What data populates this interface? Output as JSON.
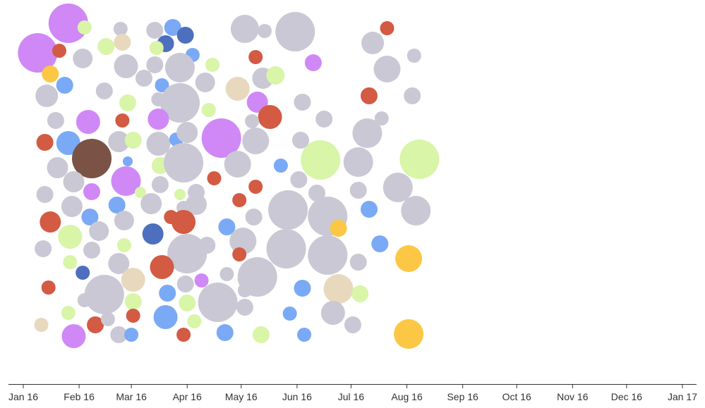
{
  "chart_data": {
    "type": "scatter",
    "x_axis": {
      "tick_labels": [
        "Jan 16",
        "Feb 16",
        "Mar 16",
        "Apr 16",
        "May 16",
        "Jun 16",
        "Jul 16",
        "Aug 16",
        "Sep 16",
        "Oct 16",
        "Nov 16",
        "Dec 16",
        "Jan 17"
      ],
      "tick_dates": [
        "2016-01-01",
        "2016-02-01",
        "2016-03-01",
        "2016-04-01",
        "2016-05-01",
        "2016-06-01",
        "2016-07-01",
        "2016-08-01",
        "2016-09-01",
        "2016-10-01",
        "2016-11-01",
        "2016-12-01",
        "2017-01-01"
      ]
    },
    "y_axis": {
      "visible": false
    },
    "grid": false,
    "legend": "none",
    "colors": {
      "gray": "#c9c8d4",
      "violet": "#cf88f5",
      "red": "#d35a43",
      "blue": "#7aa9f5",
      "navy": "#4e6fbe",
      "lime": "#d8f5a8",
      "gold": "#fbc744",
      "tan": "#e8d8bd",
      "brown": "#7a5246"
    },
    "points": [
      {
        "date": "2016-01-09",
        "y": 75,
        "r": 28,
        "c": "violet"
      },
      {
        "date": "2016-01-26",
        "y": 33,
        "r": 28,
        "c": "violet"
      },
      {
        "date": "2016-02-04",
        "y": 39,
        "r": 10,
        "c": "lime"
      },
      {
        "date": "2016-01-21",
        "y": 72,
        "r": 10,
        "c": "red"
      },
      {
        "date": "2016-01-16",
        "y": 105,
        "r": 12,
        "c": "gold"
      },
      {
        "date": "2016-02-03",
        "y": 83,
        "r": 14,
        "c": "gray"
      },
      {
        "date": "2016-01-24",
        "y": 121,
        "r": 12,
        "c": "blue"
      },
      {
        "date": "2016-01-14",
        "y": 136,
        "r": 16,
        "c": "gray"
      },
      {
        "date": "2016-02-16",
        "y": 66,
        "r": 12,
        "c": "lime"
      },
      {
        "date": "2016-02-24",
        "y": 41,
        "r": 10,
        "c": "gray"
      },
      {
        "date": "2016-02-25",
        "y": 60,
        "r": 12,
        "c": "tan"
      },
      {
        "date": "2016-02-27",
        "y": 94,
        "r": 17,
        "c": "gray"
      },
      {
        "date": "2016-02-15",
        "y": 129,
        "r": 12,
        "c": "gray"
      },
      {
        "date": "2016-03-14",
        "y": 43,
        "r": 12,
        "c": "gray"
      },
      {
        "date": "2016-03-24",
        "y": 39,
        "r": 12,
        "c": "blue"
      },
      {
        "date": "2016-03-20",
        "y": 62,
        "r": 12,
        "c": "navy"
      },
      {
        "date": "2016-03-15",
        "y": 68,
        "r": 10,
        "c": "lime"
      },
      {
        "date": "2016-03-31",
        "y": 50,
        "r": 12,
        "c": "navy"
      },
      {
        "date": "2016-04-04",
        "y": 78,
        "r": 10,
        "c": "blue"
      },
      {
        "date": "2016-03-14",
        "y": 92,
        "r": 12,
        "c": "gray"
      },
      {
        "date": "2016-03-08",
        "y": 111,
        "r": 12,
        "c": "gray"
      },
      {
        "date": "2016-03-28",
        "y": 96,
        "r": 21,
        "c": "gray"
      },
      {
        "date": "2016-04-15",
        "y": 92,
        "r": 10,
        "c": "lime"
      },
      {
        "date": "2016-04-11",
        "y": 117,
        "r": 14,
        "c": "gray"
      },
      {
        "date": "2016-03-18",
        "y": 121,
        "r": 10,
        "c": "blue"
      },
      {
        "date": "2016-02-28",
        "y": 146,
        "r": 12,
        "c": "lime"
      },
      {
        "date": "2016-03-16",
        "y": 141,
        "r": 10,
        "c": "gray"
      },
      {
        "date": "2016-03-28",
        "y": 146,
        "r": 28,
        "c": "gray"
      },
      {
        "date": "2016-01-19",
        "y": 171,
        "r": 12,
        "c": "gray"
      },
      {
        "date": "2016-02-06",
        "y": 173,
        "r": 17,
        "c": "violet"
      },
      {
        "date": "2016-02-25",
        "y": 171,
        "r": 10,
        "c": "red"
      },
      {
        "date": "2016-03-16",
        "y": 169,
        "r": 15,
        "c": "violet"
      },
      {
        "date": "2016-04-13",
        "y": 156,
        "r": 10,
        "c": "lime"
      },
      {
        "date": "2016-05-03",
        "y": 41,
        "r": 20,
        "c": "gray"
      },
      {
        "date": "2016-05-14",
        "y": 44,
        "r": 10,
        "c": "gray"
      },
      {
        "date": "2016-05-31",
        "y": 45,
        "r": 28,
        "c": "gray"
      },
      {
        "date": "2016-05-09",
        "y": 81,
        "r": 10,
        "c": "red"
      },
      {
        "date": "2016-05-13",
        "y": 111,
        "r": 15,
        "c": "gray"
      },
      {
        "date": "2016-04-29",
        "y": 126,
        "r": 17,
        "c": "tan"
      },
      {
        "date": "2016-05-20",
        "y": 107,
        "r": 13,
        "c": "lime"
      },
      {
        "date": "2016-05-10",
        "y": 145,
        "r": 15,
        "c": "violet"
      },
      {
        "date": "2016-06-10",
        "y": 89,
        "r": 12,
        "c": "violet"
      },
      {
        "date": "2016-07-13",
        "y": 61,
        "r": 16,
        "c": "gray"
      },
      {
        "date": "2016-07-21",
        "y": 40,
        "r": 10,
        "c": "red"
      },
      {
        "date": "2016-08-05",
        "y": 79,
        "r": 10,
        "c": "gray"
      },
      {
        "date": "2016-07-21",
        "y": 98,
        "r": 19,
        "c": "gray"
      },
      {
        "date": "2016-08-04",
        "y": 136,
        "r": 12,
        "c": "gray"
      },
      {
        "date": "2016-07-11",
        "y": 136,
        "r": 12,
        "c": "red"
      },
      {
        "date": "2016-06-04",
        "y": 145,
        "r": 12,
        "c": "gray"
      },
      {
        "date": "2016-05-17",
        "y": 166,
        "r": 17,
        "c": "red"
      },
      {
        "date": "2016-05-07",
        "y": 172,
        "r": 10,
        "c": "gray"
      },
      {
        "date": "2016-06-16",
        "y": 169,
        "r": 12,
        "c": "gray"
      },
      {
        "date": "2016-07-18",
        "y": 168,
        "r": 10,
        "c": "gray"
      },
      {
        "date": "2016-07-10",
        "y": 189,
        "r": 21,
        "c": "gray"
      },
      {
        "date": "2016-01-13",
        "y": 202,
        "r": 12,
        "c": "red"
      },
      {
        "date": "2016-01-26",
        "y": 203,
        "r": 17,
        "c": "blue"
      },
      {
        "date": "2016-02-08",
        "y": 225,
        "r": 28,
        "c": "brown"
      },
      {
        "date": "2016-02-23",
        "y": 201,
        "r": 15,
        "c": "gray"
      },
      {
        "date": "2016-03-02",
        "y": 199,
        "r": 12,
        "c": "lime"
      },
      {
        "date": "2016-03-16",
        "y": 204,
        "r": 17,
        "c": "gray"
      },
      {
        "date": "2016-03-26",
        "y": 198,
        "r": 10,
        "c": "blue"
      },
      {
        "date": "2016-04-01",
        "y": 188,
        "r": 15,
        "c": "gray"
      },
      {
        "date": "2016-04-20",
        "y": 196,
        "r": 28,
        "c": "violet"
      },
      {
        "date": "2016-05-09",
        "y": 200,
        "r": 19,
        "c": "gray"
      },
      {
        "date": "2016-06-03",
        "y": 199,
        "r": 12,
        "c": "gray"
      },
      {
        "date": "2016-01-20",
        "y": 238,
        "r": 15,
        "c": "gray"
      },
      {
        "date": "2016-01-29",
        "y": 258,
        "r": 15,
        "c": "gray"
      },
      {
        "date": "2016-02-28",
        "y": 229,
        "r": 7,
        "c": "blue"
      },
      {
        "date": "2016-03-17",
        "y": 235,
        "r": 12,
        "c": "lime"
      },
      {
        "date": "2016-03-30",
        "y": 231,
        "r": 28,
        "c": "gray"
      },
      {
        "date": "2016-04-29",
        "y": 233,
        "r": 19,
        "c": "gray"
      },
      {
        "date": "2016-04-16",
        "y": 253,
        "r": 10,
        "c": "red"
      },
      {
        "date": "2016-05-23",
        "y": 235,
        "r": 10,
        "c": "blue"
      },
      {
        "date": "2016-06-14",
        "y": 227,
        "r": 28,
        "c": "lime"
      },
      {
        "date": "2016-07-05",
        "y": 230,
        "r": 21,
        "c": "gray"
      },
      {
        "date": "2016-08-08",
        "y": 226,
        "r": 28,
        "c": "lime"
      },
      {
        "date": "2016-01-13",
        "y": 276,
        "r": 12,
        "c": "gray"
      },
      {
        "date": "2016-02-08",
        "y": 272,
        "r": 12,
        "c": "violet"
      },
      {
        "date": "2016-02-27",
        "y": 257,
        "r": 21,
        "c": "violet"
      },
      {
        "date": "2016-03-06",
        "y": 273,
        "r": 8,
        "c": "lime"
      },
      {
        "date": "2016-03-17",
        "y": 262,
        "r": 12,
        "c": "gray"
      },
      {
        "date": "2016-03-28",
        "y": 276,
        "r": 8,
        "c": "lime"
      },
      {
        "date": "2016-04-06",
        "y": 273,
        "r": 12,
        "c": "gray"
      },
      {
        "date": "2016-05-09",
        "y": 265,
        "r": 10,
        "c": "red"
      },
      {
        "date": "2016-06-02",
        "y": 255,
        "r": 12,
        "c": "gray"
      },
      {
        "date": "2016-06-12",
        "y": 274,
        "r": 12,
        "c": "gray"
      },
      {
        "date": "2016-07-05",
        "y": 270,
        "r": 12,
        "c": "gray"
      },
      {
        "date": "2016-07-27",
        "y": 266,
        "r": 21,
        "c": "gray"
      },
      {
        "date": "2016-01-28",
        "y": 293,
        "r": 15,
        "c": "gray"
      },
      {
        "date": "2016-02-22",
        "y": 291,
        "r": 12,
        "c": "blue"
      },
      {
        "date": "2016-03-12",
        "y": 289,
        "r": 15,
        "c": "gray"
      },
      {
        "date": "2016-03-30",
        "y": 295,
        "r": 10,
        "c": "gray"
      },
      {
        "date": "2016-04-06",
        "y": 290,
        "r": 15,
        "c": "gray"
      },
      {
        "date": "2016-04-30",
        "y": 284,
        "r": 10,
        "c": "red"
      },
      {
        "date": "2016-05-27",
        "y": 298,
        "r": 28,
        "c": "gray"
      },
      {
        "date": "2016-06-18",
        "y": 307,
        "r": 28,
        "c": "gray"
      },
      {
        "date": "2016-07-11",
        "y": 297,
        "r": 12,
        "c": "blue"
      },
      {
        "date": "2016-08-06",
        "y": 299,
        "r": 21,
        "c": "gray"
      },
      {
        "date": "2016-01-16",
        "y": 315,
        "r": 15,
        "c": "red"
      },
      {
        "date": "2016-02-07",
        "y": 308,
        "r": 12,
        "c": "blue"
      },
      {
        "date": "2016-02-26",
        "y": 313,
        "r": 14,
        "c": "gray"
      },
      {
        "date": "2016-03-23",
        "y": 308,
        "r": 10,
        "c": "red"
      },
      {
        "date": "2016-03-30",
        "y": 315,
        "r": 17,
        "c": "red"
      },
      {
        "date": "2016-04-23",
        "y": 322,
        "r": 12,
        "c": "blue"
      },
      {
        "date": "2016-05-08",
        "y": 308,
        "r": 12,
        "c": "gray"
      },
      {
        "date": "2016-06-24",
        "y": 324,
        "r": 12,
        "c": "gold"
      },
      {
        "date": "2016-01-12",
        "y": 353,
        "r": 12,
        "c": "gray"
      },
      {
        "date": "2016-01-27",
        "y": 336,
        "r": 17,
        "c": "lime"
      },
      {
        "date": "2016-02-12",
        "y": 328,
        "r": 14,
        "c": "gray"
      },
      {
        "date": "2016-03-13",
        "y": 332,
        "r": 15,
        "c": "navy"
      },
      {
        "date": "2016-04-01",
        "y": 360,
        "r": 28,
        "c": "gray"
      },
      {
        "date": "2016-04-12",
        "y": 348,
        "r": 12,
        "c": "gray"
      },
      {
        "date": "2016-05-02",
        "y": 342,
        "r": 19,
        "c": "gray"
      },
      {
        "date": "2016-05-26",
        "y": 353,
        "r": 28,
        "c": "gray"
      },
      {
        "date": "2016-06-18",
        "y": 362,
        "r": 28,
        "c": "gray"
      },
      {
        "date": "2016-07-17",
        "y": 346,
        "r": 12,
        "c": "blue"
      },
      {
        "date": "2016-01-27",
        "y": 372,
        "r": 10,
        "c": "lime"
      },
      {
        "date": "2016-02-08",
        "y": 355,
        "r": 12,
        "c": "gray"
      },
      {
        "date": "2016-02-26",
        "y": 348,
        "r": 10,
        "c": "lime"
      },
      {
        "date": "2016-02-23",
        "y": 374,
        "r": 15,
        "c": "gray"
      },
      {
        "date": "2016-04-30",
        "y": 361,
        "r": 10,
        "c": "red"
      },
      {
        "date": "2016-07-05",
        "y": 372,
        "r": 12,
        "c": "gray"
      },
      {
        "date": "2016-08-02",
        "y": 367,
        "r": 19,
        "c": "gold"
      },
      {
        "date": "2016-02-03",
        "y": 387,
        "r": 10,
        "c": "navy"
      },
      {
        "date": "2016-03-02",
        "y": 397,
        "r": 17,
        "c": "tan"
      },
      {
        "date": "2016-03-18",
        "y": 379,
        "r": 17,
        "c": "red"
      },
      {
        "date": "2016-04-23",
        "y": 389,
        "r": 10,
        "c": "gray"
      },
      {
        "date": "2016-05-10",
        "y": 393,
        "r": 28,
        "c": "gray"
      },
      {
        "date": "2016-01-15",
        "y": 408,
        "r": 10,
        "c": "red"
      },
      {
        "date": "2016-02-15",
        "y": 418,
        "r": 28,
        "c": "gray"
      },
      {
        "date": "2016-03-21",
        "y": 416,
        "r": 12,
        "c": "blue"
      },
      {
        "date": "2016-03-31",
        "y": 403,
        "r": 12,
        "c": "gray"
      },
      {
        "date": "2016-04-09",
        "y": 398,
        "r": 10,
        "c": "violet"
      },
      {
        "date": "2016-04-18",
        "y": 429,
        "r": 28,
        "c": "gray"
      },
      {
        "date": "2016-05-03",
        "y": 412,
        "r": 10,
        "c": "gray"
      },
      {
        "date": "2016-06-04",
        "y": 409,
        "r": 12,
        "c": "blue"
      },
      {
        "date": "2016-06-24",
        "y": 410,
        "r": 21,
        "c": "tan"
      },
      {
        "date": "2016-07-06",
        "y": 417,
        "r": 12,
        "c": "lime"
      },
      {
        "date": "2016-01-26",
        "y": 444,
        "r": 10,
        "c": "lime"
      },
      {
        "date": "2016-02-04",
        "y": 426,
        "r": 10,
        "c": "gray"
      },
      {
        "date": "2016-03-02",
        "y": 428,
        "r": 12,
        "c": "lime"
      },
      {
        "date": "2016-03-20",
        "y": 450,
        "r": 17,
        "c": "blue"
      },
      {
        "date": "2016-04-01",
        "y": 430,
        "r": 12,
        "c": "lime"
      },
      {
        "date": "2016-05-03",
        "y": 436,
        "r": 12,
        "c": "gray"
      },
      {
        "date": "2016-05-28",
        "y": 445,
        "r": 10,
        "c": "blue"
      },
      {
        "date": "2016-06-21",
        "y": 444,
        "r": 17,
        "c": "gray"
      },
      {
        "date": "2016-01-11",
        "y": 461,
        "r": 10,
        "c": "tan"
      },
      {
        "date": "2016-01-29",
        "y": 477,
        "r": 17,
        "c": "violet"
      },
      {
        "date": "2016-02-10",
        "y": 461,
        "r": 12,
        "c": "red"
      },
      {
        "date": "2016-02-17",
        "y": 453,
        "r": 10,
        "c": "gray"
      },
      {
        "date": "2016-02-23",
        "y": 475,
        "r": 12,
        "c": "gray"
      },
      {
        "date": "2016-03-02",
        "y": 448,
        "r": 10,
        "c": "red"
      },
      {
        "date": "2016-03-01",
        "y": 475,
        "r": 10,
        "c": "blue"
      },
      {
        "date": "2016-03-30",
        "y": 475,
        "r": 10,
        "c": "red"
      },
      {
        "date": "2016-04-05",
        "y": 456,
        "r": 10,
        "c": "lime"
      },
      {
        "date": "2016-04-22",
        "y": 472,
        "r": 12,
        "c": "blue"
      },
      {
        "date": "2016-05-12",
        "y": 475,
        "r": 12,
        "c": "lime"
      },
      {
        "date": "2016-06-05",
        "y": 475,
        "r": 10,
        "c": "blue"
      },
      {
        "date": "2016-07-02",
        "y": 461,
        "r": 12,
        "c": "gray"
      },
      {
        "date": "2016-08-02",
        "y": 474,
        "r": 21,
        "c": "gold"
      }
    ]
  }
}
